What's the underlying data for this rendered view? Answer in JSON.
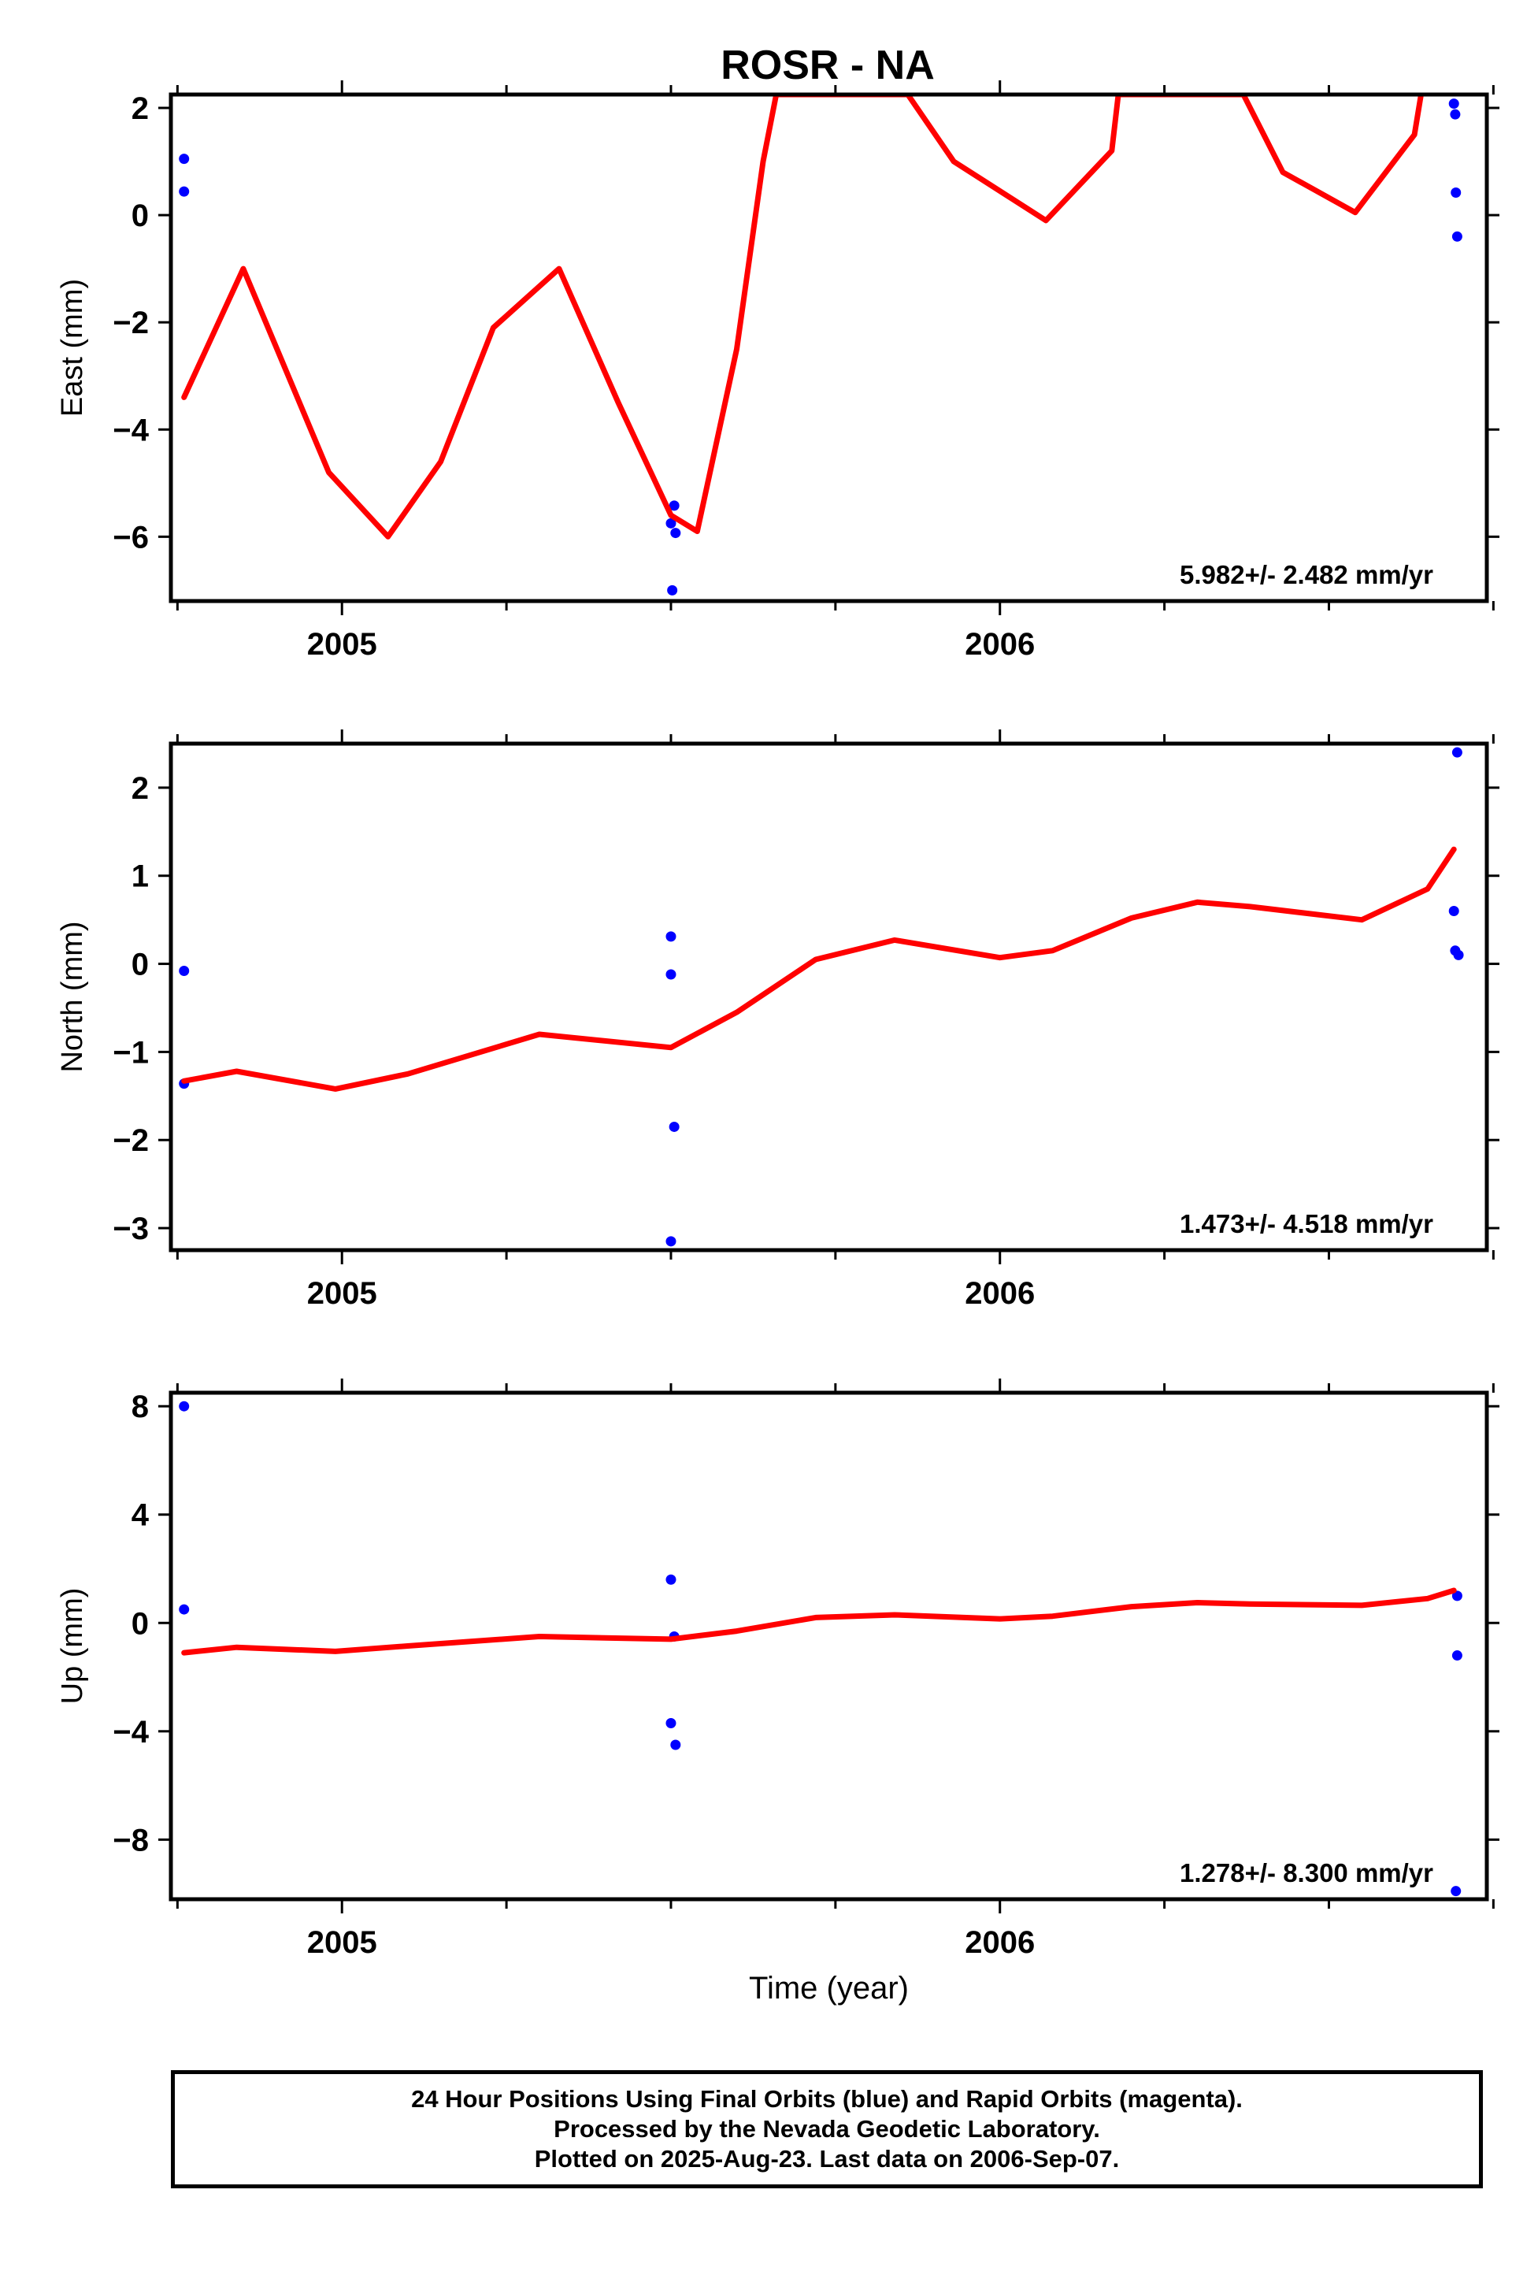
{
  "title": "ROSR - NA",
  "chart_data": [
    {
      "type": "scatter",
      "panel": "east",
      "ylabel": "East (mm)",
      "xlabel": "",
      "x_ticks": [
        "2005",
        "2006"
      ],
      "x_range": [
        2004.74,
        2006.74
      ],
      "ylim": [
        -7.2,
        2.25
      ],
      "yticks": [
        2,
        0,
        -2,
        -4,
        -6
      ],
      "rate_label": "5.982+/- 2.482 mm/yr",
      "series": [
        {
          "name": "",
          "color": "#0000ff",
          "kind": "points",
          "x": [
            2004.76,
            2004.76,
            2005.5,
            2005.505,
            2005.507,
            2005.502,
            2006.69,
            2006.692,
            2006.693,
            2006.695
          ],
          "y": [
            1.05,
            0.44,
            -5.75,
            -5.42,
            -5.93,
            -7.0,
            2.08,
            1.88,
            0.42,
            -0.4
          ]
        },
        {
          "name": "",
          "color": "#ff0000",
          "kind": "line",
          "x": [
            2004.76,
            2004.85,
            2004.98,
            2005.07,
            2005.15,
            2005.23,
            2005.33,
            2005.42,
            2005.5,
            2005.54,
            2005.6,
            2005.64,
            2005.66,
            2005.86,
            2005.93,
            2006.07,
            2006.17,
            2006.18,
            2006.37,
            2006.43,
            2006.54,
            2006.63,
            2006.64
          ],
          "y": [
            -3.4,
            -1.0,
            -4.8,
            -6.0,
            -4.6,
            -2.1,
            -1.0,
            -3.5,
            -5.6,
            -5.9,
            -2.5,
            1.0,
            2.25,
            2.25,
            1.0,
            -0.1,
            1.2,
            2.25,
            2.25,
            0.8,
            0.05,
            1.5,
            2.25
          ]
        }
      ]
    },
    {
      "type": "scatter",
      "panel": "north",
      "ylabel": "North (mm)",
      "xlabel": "",
      "x_ticks": [
        "2005",
        "2006"
      ],
      "x_range": [
        2004.74,
        2006.74
      ],
      "ylim": [
        -3.25,
        2.5
      ],
      "yticks": [
        2,
        1,
        0,
        -1,
        -2,
        -3
      ],
      "rate_label": "1.473+/- 4.518 mm/yr",
      "series": [
        {
          "name": "",
          "color": "#0000ff",
          "kind": "points",
          "x": [
            2004.76,
            2004.76,
            2005.5,
            2005.5,
            2005.505,
            2005.5,
            2006.695,
            2006.69,
            2006.692,
            2006.697
          ],
          "y": [
            -0.08,
            -1.36,
            0.31,
            -0.12,
            -1.85,
            -3.15,
            2.4,
            0.6,
            0.15,
            0.1
          ]
        },
        {
          "name": "",
          "color": "#ff0000",
          "kind": "line",
          "x": [
            2004.76,
            2004.84,
            2004.99,
            2005.1,
            2005.3,
            2005.5,
            2005.6,
            2005.72,
            2005.84,
            2006.0,
            2006.08,
            2006.2,
            2006.3,
            2006.38,
            2006.55,
            2006.65,
            2006.69
          ],
          "y": [
            -1.33,
            -1.22,
            -1.42,
            -1.25,
            -0.8,
            -0.95,
            -0.55,
            0.05,
            0.27,
            0.07,
            0.15,
            0.52,
            0.7,
            0.65,
            0.5,
            0.85,
            1.3
          ]
        }
      ]
    },
    {
      "type": "scatter",
      "panel": "up",
      "ylabel": "Up (mm)",
      "xlabel": "Time (year)",
      "x_ticks": [
        "2005",
        "2006"
      ],
      "x_range": [
        2004.74,
        2006.74
      ],
      "ylim": [
        -10.2,
        8.5
      ],
      "yticks": [
        8,
        4,
        0,
        -4,
        -8
      ],
      "rate_label": "1.278+/- 8.300 mm/yr",
      "series": [
        {
          "name": "",
          "color": "#0000ff",
          "kind": "points",
          "x": [
            2004.76,
            2004.76,
            2005.5,
            2005.505,
            2005.5,
            2005.507,
            2006.695,
            2006.695,
            2006.693
          ],
          "y": [
            8.0,
            0.5,
            1.6,
            -0.5,
            -3.7,
            -4.5,
            1.0,
            -1.2,
            -9.9
          ]
        },
        {
          "name": "",
          "color": "#ff0000",
          "kind": "line",
          "x": [
            2004.76,
            2004.84,
            2004.99,
            2005.1,
            2005.3,
            2005.5,
            2005.6,
            2005.72,
            2005.84,
            2006.0,
            2006.08,
            2006.2,
            2006.3,
            2006.38,
            2006.55,
            2006.65,
            2006.69
          ],
          "y": [
            -1.1,
            -0.9,
            -1.05,
            -0.85,
            -0.5,
            -0.6,
            -0.3,
            0.2,
            0.3,
            0.15,
            0.25,
            0.6,
            0.75,
            0.7,
            0.65,
            0.9,
            1.2
          ]
        }
      ]
    }
  ],
  "caption": {
    "line1": "24 Hour Positions Using Final Orbits (blue) and Rapid Orbits (magenta).",
    "line2": "Processed by the Nevada Geodetic Laboratory.",
    "line3": "Plotted on 2025-Aug-23. Last data on 2006-Sep-07."
  }
}
